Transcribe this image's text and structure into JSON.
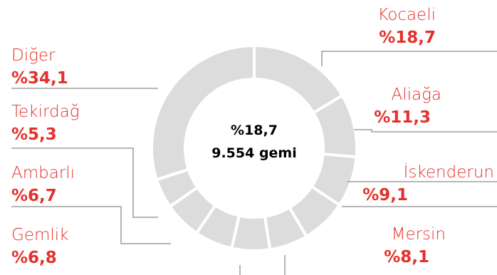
{
  "chart_data": {
    "type": "donut",
    "center_label_1": "%18,7",
    "center_label_2": "9.554 gemi",
    "slice_color": "#dcdcdc",
    "label_color": "#e4312b",
    "slices": [
      {
        "name": "Kocaeli",
        "pct_label": "%18,7",
        "value": 18.7
      },
      {
        "name": "Aliağa",
        "pct_label": "%11,3",
        "value": 11.3
      },
      {
        "name": "İskenderun",
        "pct_label": "%9,1",
        "value": 9.1
      },
      {
        "name": "Mersin",
        "pct_label": "%8,1",
        "value": 8.1
      },
      {
        "name": "",
        "pct_label": "",
        "value": 6.9
      },
      {
        "name": "",
        "pct_label": "",
        "value": 6.8
      },
      {
        "name": "Gemlik",
        "pct_label": "%6,8",
        "value": 6.8
      },
      {
        "name": "Ambarlı",
        "pct_label": "%6,7",
        "value": 6.7
      },
      {
        "name": "Tekirdağ",
        "pct_label": "%5,3",
        "value": 5.3
      },
      {
        "name": "Diğer",
        "pct_label": "%34,1",
        "value": 34.1
      }
    ]
  }
}
